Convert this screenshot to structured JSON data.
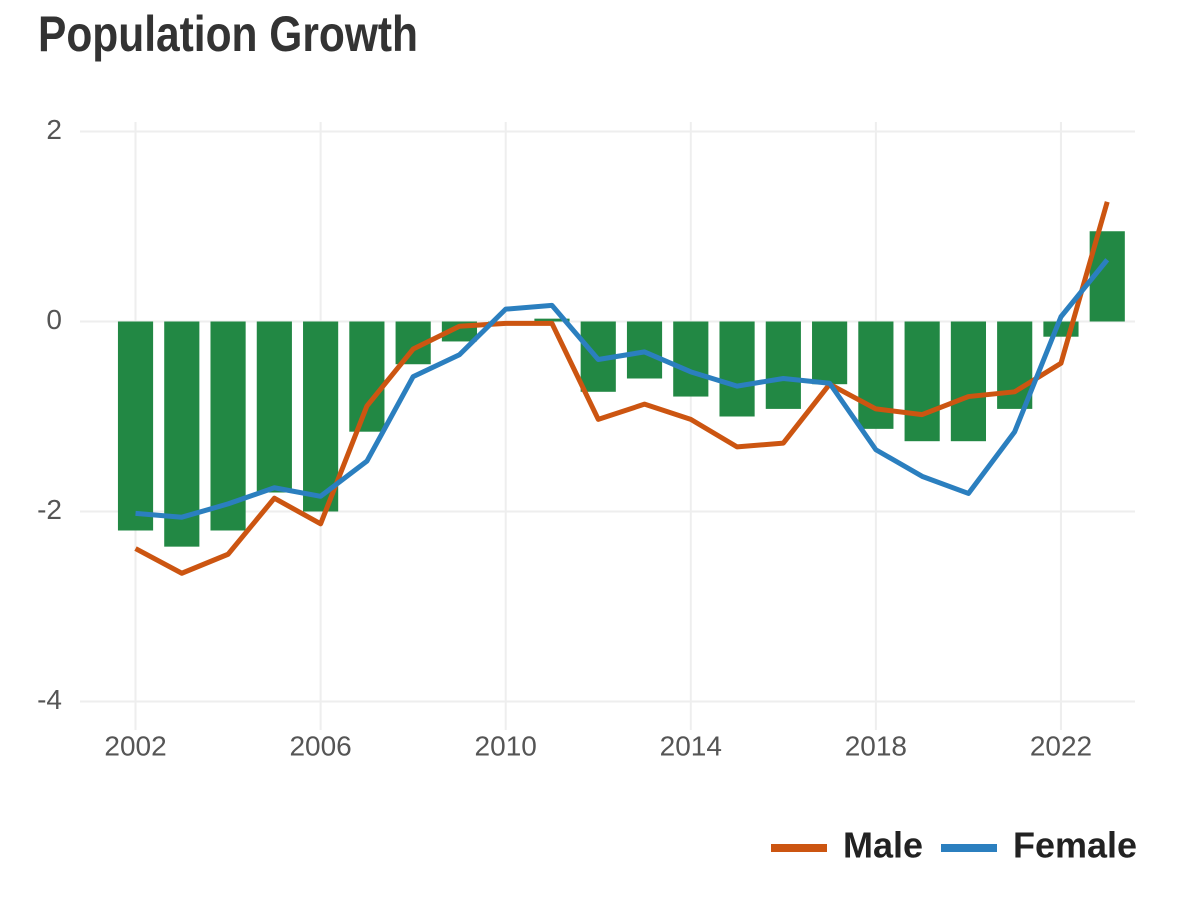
{
  "chart_data": {
    "type": "bar",
    "title": "Population Growth",
    "x": [
      2002,
      2003,
      2004,
      2005,
      2006,
      2007,
      2008,
      2009,
      2010,
      2011,
      2012,
      2013,
      2014,
      2015,
      2016,
      2017,
      2018,
      2019,
      2020,
      2021,
      2022,
      2023
    ],
    "values": [
      -2.2,
      -2.37,
      -2.2,
      -1.8,
      -2.0,
      -1.16,
      -0.45,
      -0.21,
      -0.02,
      0.03,
      -0.74,
      -0.6,
      -0.79,
      -1.0,
      -0.92,
      -0.66,
      -1.13,
      -1.26,
      -1.26,
      -0.92,
      -0.16,
      0.95
    ],
    "color": "#228844",
    "series": [
      {
        "name": "Male",
        "type": "line",
        "color": "#cc5511",
        "values": [
          -2.39,
          -2.65,
          -2.45,
          -1.86,
          -2.13,
          -0.89,
          -0.29,
          -0.05,
          -0.02,
          -0.02,
          -1.03,
          -0.87,
          -1.03,
          -1.32,
          -1.28,
          -0.66,
          -0.92,
          -0.98,
          -0.79,
          -0.74,
          -0.44,
          1.26
        ]
      },
      {
        "name": "Female",
        "type": "line",
        "color": "#2b7fbf",
        "values": [
          -2.02,
          -2.06,
          -1.92,
          -1.75,
          -1.84,
          -1.47,
          -0.58,
          -0.35,
          0.13,
          0.17,
          -0.4,
          -0.32,
          -0.53,
          -0.68,
          -0.6,
          -0.65,
          -1.35,
          -1.63,
          -1.81,
          -1.16,
          0.05,
          0.65
        ]
      }
    ],
    "xlim": [
      2000.8,
      2023.6
    ],
    "xticks": [
      2002,
      2006,
      2010,
      2014,
      2018,
      2022
    ],
    "ylim": [
      -4.3,
      2.1
    ],
    "yticks": [
      -4,
      -2,
      0,
      2
    ],
    "grid": true,
    "legend": "bottom-right"
  }
}
